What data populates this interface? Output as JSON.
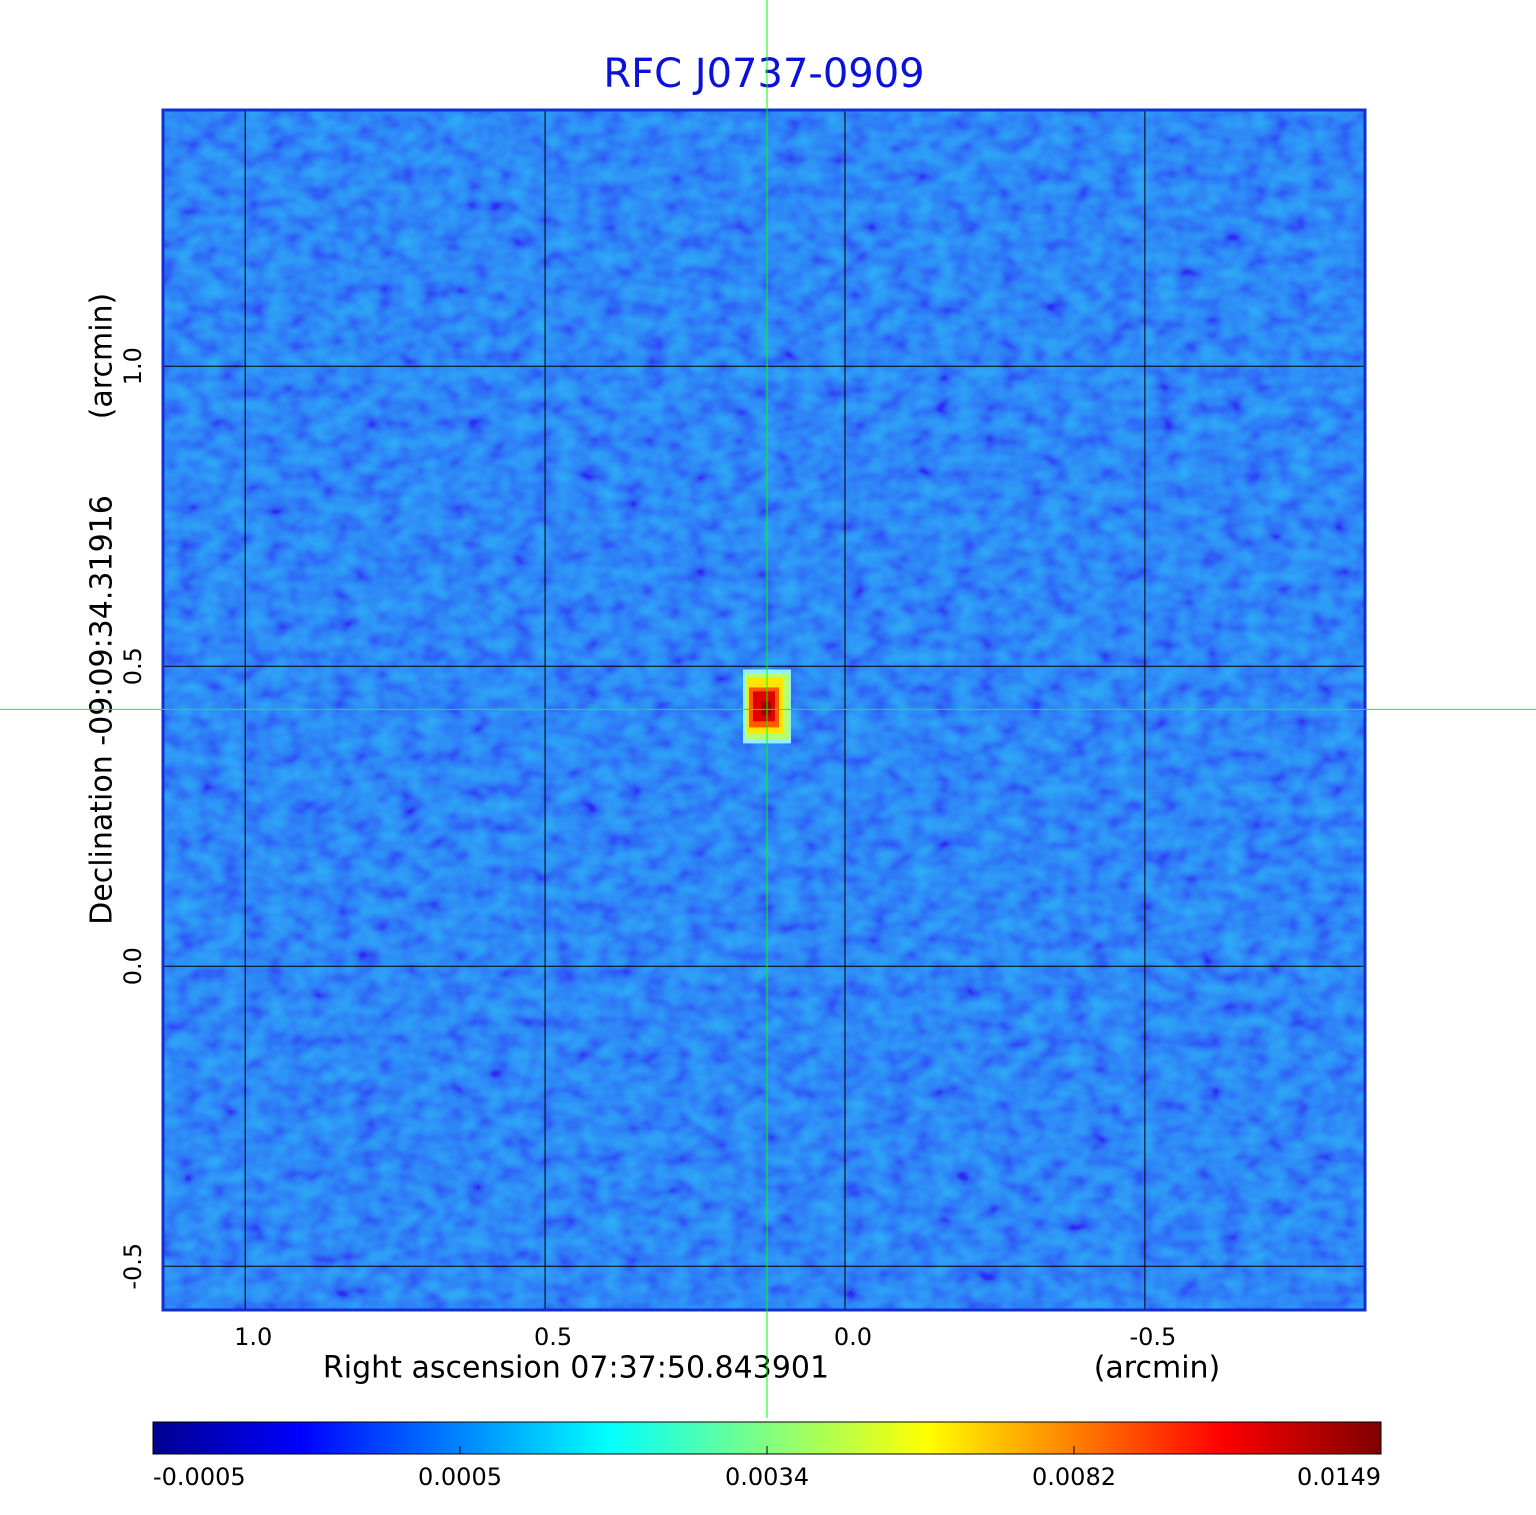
{
  "chart_data": {
    "type": "image",
    "title": "RFC J0737-0909",
    "xlabel": "Right ascension  07:37:50.843901",
    "xunit": "(arcmin)",
    "ylabel": "Declination  -09:09:34.31916",
    "yunit": "(arcmin)",
    "xlim": [
      1.137,
      -0.867
    ],
    "ylim": [
      -0.573,
      1.427
    ],
    "xticks": [
      {
        "value": 1,
        "label": "1.0"
      },
      0.5,
      {
        "value": 0,
        "label": "0.0"
      },
      -0.5
    ],
    "yticks": [
      -0.5,
      {
        "value": 0,
        "label": "0.0"
      },
      0.5,
      {
        "value": 1,
        "label": "1.0"
      }
    ],
    "grid": true,
    "crosshair": {
      "x": 0.13,
      "y": 0.428,
      "color": "#00ff00"
    },
    "colorbar_ticks": [
      -0.0005,
      0.0005,
      0.0034,
      0.0082,
      0.0149
    ]
  }
}
